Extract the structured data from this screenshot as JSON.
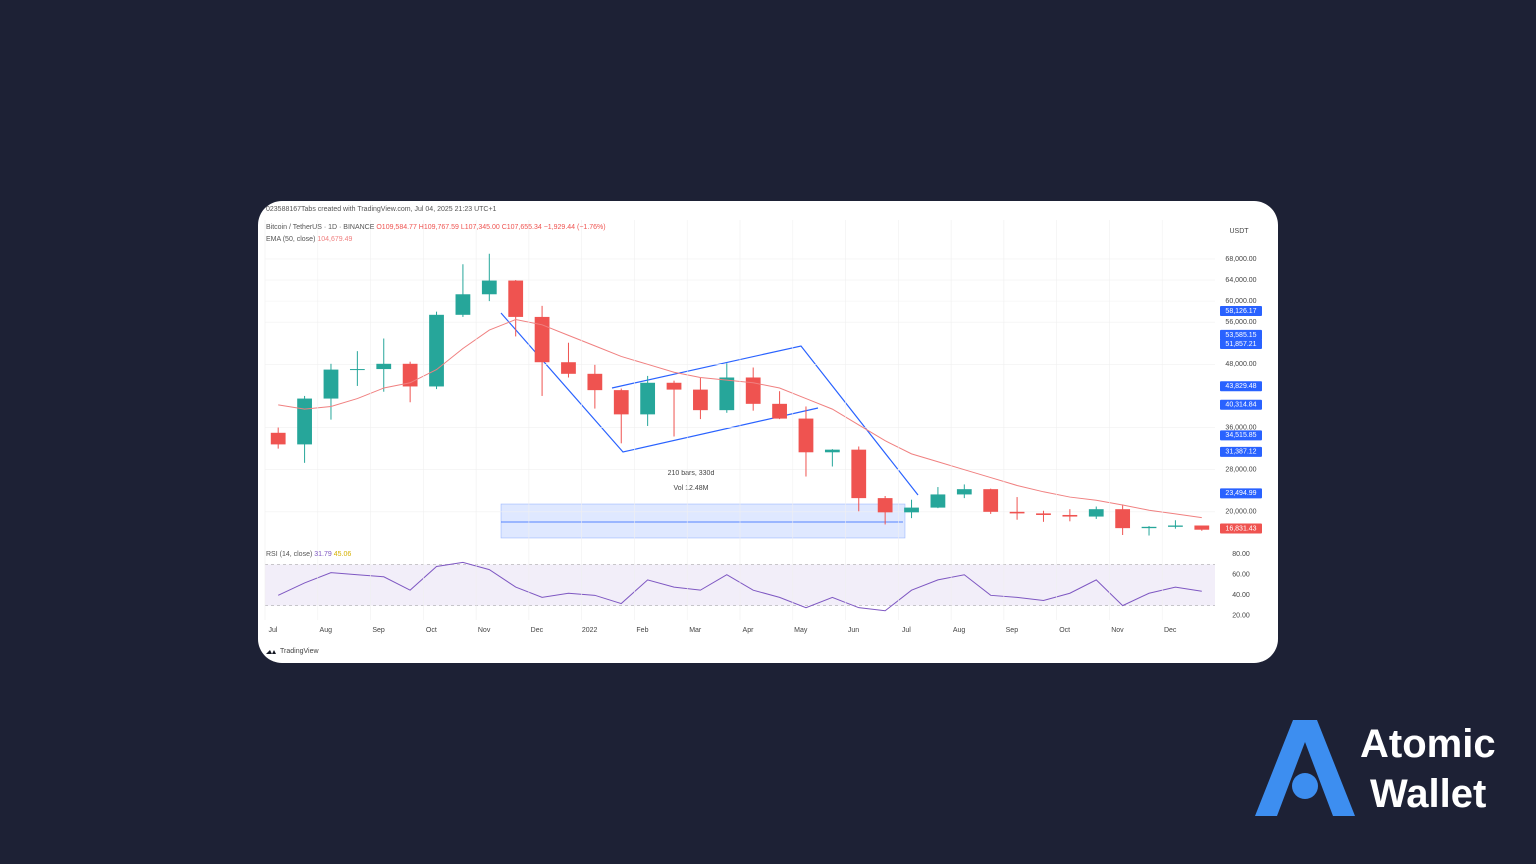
{
  "header": {
    "credit": "023588167Tabs created with TradingView.com, Jul 04, 2025 21:23 UTC+1",
    "symbol": "Bitcoin / TetherUS · 1D · BINANCE",
    "ohlc": "O109,584.77 H109,767.59 L107,345.00 C107,655.34 −1,929.44 (−1.76%)",
    "ema_value": "104,679.49",
    "currency": "USDT",
    "measure_bars": "210 bars, 330d",
    "measure_vol": "Vol 12.48M",
    "rsi_value": "31.79",
    "rsi_ma_value": "45.06"
  },
  "footer": {
    "logo": "TradingView"
  },
  "brand": {
    "line1": "Atomic",
    "line2": "Wallet"
  },
  "chart_data": [
    {
      "type": "candlestick",
      "categories": [
        "Jul",
        null,
        "Aug",
        null,
        "Sep",
        null,
        "Oct",
        null,
        "Nov",
        null,
        "Dec",
        null,
        "2022",
        null,
        "Feb",
        null,
        "Mar",
        null,
        "Apr",
        null,
        "May",
        null,
        "Jun",
        null,
        "Jul",
        null,
        "Aug",
        null,
        "Sep",
        null,
        "Oct",
        null,
        "Nov",
        null,
        "Dec",
        null
      ],
      "open": [
        35000,
        32800,
        41500,
        47000,
        47100,
        48100,
        43800,
        57400,
        61300,
        63900,
        57000,
        48400,
        46200,
        43100,
        38500,
        44500,
        43200,
        39300,
        45500,
        40500,
        37700,
        31300,
        31800,
        22600,
        19900,
        20800,
        23300,
        24300,
        20000,
        19700,
        19400,
        19100,
        20500,
        16900,
        17150,
        17400
      ],
      "high": [
        36000,
        42000,
        48100,
        50500,
        52900,
        48500,
        58000,
        67000,
        69000,
        64000,
        59100,
        52100,
        47900,
        43400,
        45800,
        44900,
        45400,
        48200,
        47400,
        42900,
        40000,
        31900,
        32400,
        23000,
        22300,
        24700,
        25200,
        24400,
        22800,
        20200,
        20500,
        21000,
        21400,
        17300,
        18400,
        17400
      ],
      "low": [
        32000,
        29300,
        37500,
        43900,
        42800,
        40800,
        43300,
        57000,
        60000,
        53300,
        42000,
        45500,
        39600,
        33000,
        36300,
        34300,
        37600,
        38800,
        39200,
        37600,
        26700,
        28600,
        20100,
        17600,
        18800,
        20700,
        22600,
        19600,
        18500,
        18100,
        18200,
        18650,
        15600,
        15500,
        16800,
        16400
      ],
      "close": [
        32800,
        41500,
        47000,
        47100,
        48100,
        43800,
        57400,
        61300,
        63900,
        57000,
        48400,
        46200,
        43100,
        38500,
        44500,
        43200,
        39300,
        45500,
        40500,
        37700,
        31300,
        31800,
        22600,
        19900,
        20800,
        23300,
        24300,
        20000,
        19700,
        19400,
        19100,
        20500,
        16900,
        17150,
        17400,
        16600
      ],
      "up_color": "#26a69a",
      "down_color": "#ef5350",
      "series": [
        {
          "name": "EMA (50, close)",
          "color": "#f08080",
          "values": [
            40300,
            39500,
            40000,
            41500,
            43500,
            44500,
            47000,
            51000,
            54500,
            56500,
            55500,
            53500,
            51500,
            49500,
            48000,
            46500,
            45500,
            45000,
            44500,
            43500,
            41500,
            39500,
            36500,
            33500,
            31000,
            29500,
            28000,
            26500,
            25000,
            23800,
            22800,
            22200,
            21300,
            20300,
            19600,
            18900
          ]
        }
      ],
      "ylim": [
        13700,
        75400
      ],
      "yticks": [
        {
          "value": 68000,
          "label": "68,000.00"
        },
        {
          "value": 64000,
          "label": "64,000.00"
        },
        {
          "value": 60000,
          "label": "60,000.00"
        },
        {
          "value": 56000,
          "label": "56,000.00"
        },
        {
          "value": 48000,
          "label": "48,000.00"
        },
        {
          "value": 36000,
          "label": "36,000.00"
        },
        {
          "value": 28000,
          "label": "28,000.00"
        },
        {
          "value": 20000,
          "label": "20,000.00"
        }
      ],
      "grid": true,
      "price_labels": [
        {
          "value": 58126.17,
          "label": "58,126.17",
          "color": "#2962ff"
        },
        {
          "value": 53585.15,
          "label": "53,585.15",
          "color": "#2962ff"
        },
        {
          "value": 51857.21,
          "label": "51,857.21",
          "color": "#2962ff"
        },
        {
          "value": 43829.48,
          "label": "43,829.48",
          "color": "#2962ff"
        },
        {
          "value": 40314.84,
          "label": "40,314.84",
          "color": "#2962ff"
        },
        {
          "value": 34515.85,
          "label": "34,515.85",
          "color": "#2962ff"
        },
        {
          "value": 31387.12,
          "label": "31,387.12",
          "color": "#2962ff"
        },
        {
          "value": 23494.99,
          "label": "23,494.99",
          "color": "#2962ff"
        },
        {
          "value": 16831.43,
          "label": "16,831.43",
          "color": "#ef5350"
        }
      ]
    },
    {
      "type": "line",
      "name": "RSI (14, close)",
      "color": "#7e57c2",
      "values": [
        40,
        52,
        62,
        60,
        58,
        45,
        68,
        72,
        65,
        48,
        38,
        42,
        40,
        32,
        55,
        48,
        45,
        60,
        45,
        38,
        28,
        38,
        28,
        25,
        45,
        55,
        60,
        40,
        38,
        35,
        42,
        55,
        30,
        42,
        48,
        44
      ],
      "bands": [
        70,
        30
      ],
      "ylim": [
        16,
        86
      ],
      "yticks": [
        {
          "value": 80,
          "label": "80.00"
        },
        {
          "value": 60,
          "label": "60.00"
        },
        {
          "value": 40,
          "label": "40.00"
        },
        {
          "value": 20,
          "label": "20.00"
        }
      ]
    }
  ]
}
